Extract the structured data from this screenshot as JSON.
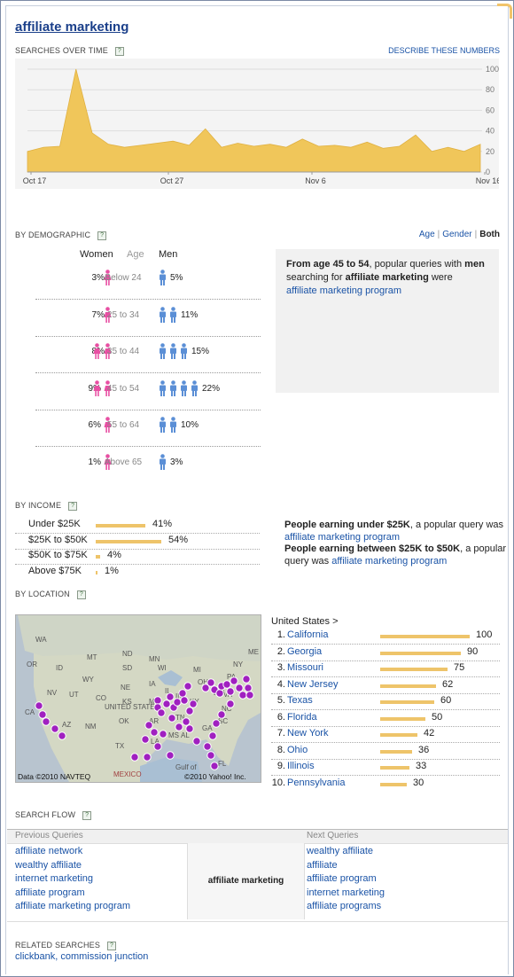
{
  "title": "affiliate marketing",
  "sections": {
    "searches_over_time": "SEARCHES OVER TIME",
    "describe": "DESCRIBE THESE NUMBERS",
    "by_demographic": "BY DEMOGRAPHIC",
    "by_income": "BY INCOME",
    "by_location": "BY LOCATION",
    "search_flow": "SEARCH FLOW",
    "related_searches": "RELATED SEARCHES",
    "help_glyph": "?"
  },
  "chart_data": {
    "type": "area",
    "x_ticks": [
      "Oct 17",
      "Oct 27",
      "Nov 6",
      "Nov 16"
    ],
    "y_ticks": [
      "100",
      "80",
      "60",
      "40",
      "20",
      "0"
    ],
    "ylim": [
      0,
      100
    ],
    "values": [
      20,
      24,
      25,
      100,
      38,
      27,
      24,
      26,
      28,
      30,
      26,
      42,
      24,
      28,
      25,
      27,
      24,
      32,
      25,
      26,
      24,
      29,
      23,
      25,
      36,
      20,
      24,
      20,
      27
    ],
    "color": "#f0c65a"
  },
  "demographic": {
    "links": {
      "age": "Age",
      "gender": "Gender",
      "both": "Both",
      "sep": "|"
    },
    "headers": {
      "women": "Women",
      "age": "Age",
      "men": "Men"
    },
    "rows": [
      {
        "women": "3%",
        "age": "Below 24",
        "men": "5%",
        "wf": 1,
        "mf": 1
      },
      {
        "women": "7%",
        "age": "25 to 34",
        "men": "11%",
        "wf": 1,
        "mf": 2
      },
      {
        "women": "8%",
        "age": "35 to 44",
        "men": "15%",
        "wf": 2,
        "mf": 3
      },
      {
        "women": "9%",
        "age": "45 to 54",
        "men": "22%",
        "wf": 2,
        "mf": 4
      },
      {
        "women": "6%",
        "age": "55 to 64",
        "men": "10%",
        "wf": 1,
        "mf": 2
      },
      {
        "women": "1%",
        "age": "Above 65",
        "men": "3%",
        "wf": 1,
        "mf": 1
      }
    ],
    "info": {
      "pre": "From age ",
      "age": "45 to 54",
      "mid": ", popular queries with ",
      "gender": "men",
      "mid2": " searching for ",
      "term": "affiliate marketing",
      "post": " were",
      "link": "affiliate marketing program"
    }
  },
  "income": {
    "rows": [
      {
        "label": "Under $25K",
        "pct": "41%",
        "value": 41
      },
      {
        "label": "$25K to $50K",
        "pct": "54%",
        "value": 54
      },
      {
        "label": "$50K to $75K",
        "pct": "4%",
        "value": 4
      },
      {
        "label": "Above $75K",
        "pct": "1%",
        "value": 1
      }
    ],
    "text1_b": "People earning under $25K",
    "text1": ", a popular query was",
    "link1": "affiliate marketing program",
    "text2_b": "People earning between $25K to $50K",
    "text2": ", a popular query was ",
    "link2": "affiliate marketing program"
  },
  "location": {
    "header": "United States >",
    "map_credit_left": "Data ©2010 NAVTEQ",
    "map_credit_right": "©2010 Yahoo! Inc.",
    "map_labels": [
      "WA",
      "MT",
      "ND",
      "MN",
      "OR",
      "ID",
      "SD",
      "WI",
      "WY",
      "IA",
      "NE",
      "NV",
      "UT",
      "CO",
      "KS",
      "MO",
      "CA",
      "AZ",
      "OK",
      "AR",
      "TN",
      "NM",
      "TX",
      "LA",
      "MS",
      "AL",
      "GA",
      "SC",
      "NC",
      "VA",
      "WV",
      "KY",
      "IN",
      "IL",
      "OH",
      "PA",
      "NY",
      "MI",
      "ME",
      "FL",
      "MEXICO",
      "UNITED STATES",
      "Gulf of"
    ],
    "rows": [
      {
        "rank": "1.",
        "name": "California",
        "value": 100
      },
      {
        "rank": "2.",
        "name": "Georgia",
        "value": 90
      },
      {
        "rank": "3.",
        "name": "Missouri",
        "value": 75
      },
      {
        "rank": "4.",
        "name": "New Jersey",
        "value": 62
      },
      {
        "rank": "5.",
        "name": "Texas",
        "value": 60
      },
      {
        "rank": "6.",
        "name": "Florida",
        "value": 50
      },
      {
        "rank": "7.",
        "name": "New York",
        "value": 42
      },
      {
        "rank": "8.",
        "name": "Ohio",
        "value": 36
      },
      {
        "rank": "9.",
        "name": "Illinois",
        "value": 33
      },
      {
        "rank": "10.",
        "name": "Pennsylvania",
        "value": 30
      }
    ]
  },
  "flow": {
    "prev_label": "Previous Queries",
    "next_label": "Next Queries",
    "center": "affiliate marketing",
    "prev": [
      "affiliate network",
      "wealthy affiliate",
      "internet marketing",
      "affiliate program",
      "affiliate marketing program"
    ],
    "next": [
      "wealthy affiliate",
      "affiliate",
      "affiliate program",
      "internet marketing",
      "affiliate programs"
    ]
  },
  "related": "clickbank, commission junction",
  "colors": {
    "women": "#e84fa3",
    "men": "#5b8fd6",
    "bar": "#eec46a",
    "dot": "#a020c0",
    "link": "#1a53a6"
  }
}
